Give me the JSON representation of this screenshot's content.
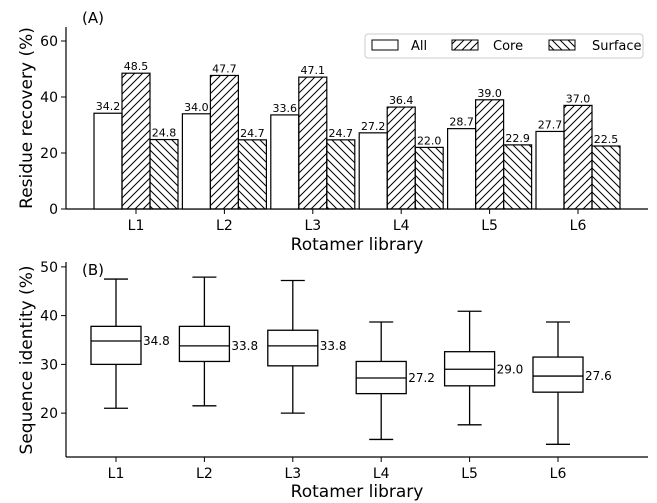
{
  "chart_data": [
    {
      "type": "bar",
      "panel_label": "(A)",
      "xlabel": "Rotamer library",
      "ylabel": "Residue recovery (%)",
      "ylim": [
        0,
        65
      ],
      "yticks": [
        0,
        20,
        40,
        60
      ],
      "categories": [
        "L1",
        "L2",
        "L3",
        "L4",
        "L5",
        "L6"
      ],
      "series": [
        {
          "name": "All",
          "pattern": "none",
          "values": [
            34.2,
            34.0,
            33.6,
            27.2,
            28.7,
            27.7
          ],
          "labels": [
            "34.2",
            "34.0",
            "33.6",
            "27.2",
            "28.7",
            "27.7"
          ]
        },
        {
          "name": "Core",
          "pattern": "forward-hatch",
          "values": [
            48.5,
            47.7,
            47.1,
            36.4,
            39.0,
            37.0
          ],
          "labels": [
            "48.5",
            "47.7",
            "47.1",
            "36.4",
            "39.0",
            "37.0"
          ]
        },
        {
          "name": "Surface",
          "pattern": "back-hatch",
          "values": [
            24.8,
            24.7,
            24.7,
            22.0,
            22.9,
            22.5
          ],
          "labels": [
            "24.8",
            "24.7",
            "24.7",
            "22.0",
            "22.9",
            "22.5"
          ]
        }
      ],
      "legend": "top-right",
      "grid": false
    },
    {
      "type": "box",
      "panel_label": "(B)",
      "xlabel": "Rotamer library",
      "ylabel": "Sequence identity (%)",
      "ylim": [
        11,
        51
      ],
      "yticks": [
        20,
        30,
        40,
        50
      ],
      "categories": [
        "L1",
        "L2",
        "L3",
        "L4",
        "L5",
        "L6"
      ],
      "boxes": [
        {
          "whislo": 21.0,
          "q1": 30.0,
          "med": 34.8,
          "q3": 37.8,
          "whishi": 47.5,
          "median_label": "34.8"
        },
        {
          "whislo": 21.5,
          "q1": 30.6,
          "med": 33.8,
          "q3": 37.8,
          "whishi": 47.9,
          "median_label": "33.8"
        },
        {
          "whislo": 20.0,
          "q1": 29.7,
          "med": 33.8,
          "q3": 37.0,
          "whishi": 47.2,
          "median_label": "33.8"
        },
        {
          "whislo": 14.6,
          "q1": 24.0,
          "med": 27.2,
          "q3": 30.6,
          "whishi": 38.7,
          "median_label": "27.2"
        },
        {
          "whislo": 17.6,
          "q1": 25.6,
          "med": 29.0,
          "q3": 32.6,
          "whishi": 40.9,
          "median_label": "29.0"
        },
        {
          "whislo": 13.6,
          "q1": 24.3,
          "med": 27.6,
          "q3": 31.5,
          "whishi": 38.7,
          "median_label": "27.6"
        }
      ],
      "grid": false
    }
  ]
}
